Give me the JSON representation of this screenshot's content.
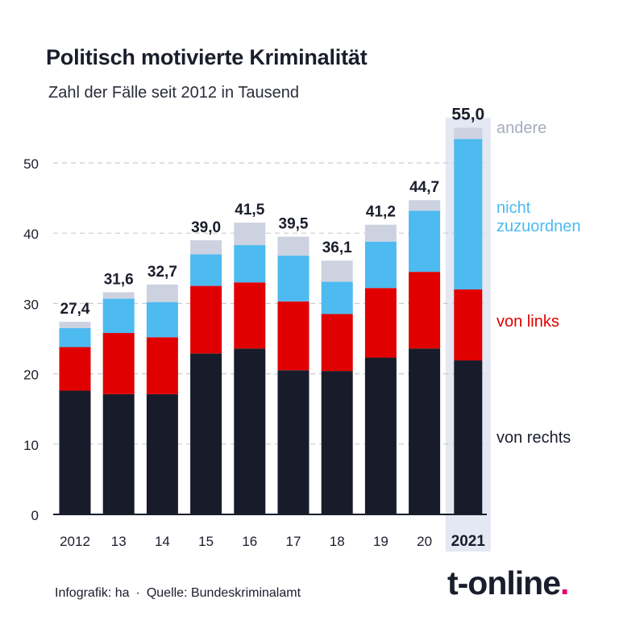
{
  "title": "Politisch motivierte Kriminalität",
  "subtitle": "Zahl der Fälle seit 2012 in Tausend",
  "footer": {
    "credit": "Infografik: ha",
    "separator": "·",
    "source": "Quelle: Bundeskriminalamt"
  },
  "logo": {
    "text": "t-online",
    "dot": "."
  },
  "colors": {
    "von_rechts": "#181b2a",
    "von_links": "#e00000",
    "nicht_zuzuordnen": "#4dbaf0",
    "andere": "#cdd2e1",
    "highlight": "#e3e8f2",
    "grid": "#c9ccd4",
    "axis": "#1a1d2b",
    "brand_accent": "#e20074"
  },
  "chart_data": {
    "type": "bar",
    "stacked": true,
    "categories": [
      "2012",
      "13",
      "14",
      "15",
      "16",
      "17",
      "18",
      "19",
      "20",
      "2021"
    ],
    "highlighted_category": "2021",
    "totals": [
      "27,4",
      "31,6",
      "32,7",
      "39,0",
      "41,5",
      "39,5",
      "36,1",
      "41,2",
      "44,7",
      "55,0"
    ],
    "series": [
      {
        "name": "von rechts",
        "label_lines": [
          "von rechts"
        ],
        "color": "#181b2a",
        "values": [
          17.6,
          17.1,
          17.1,
          22.9,
          23.6,
          20.5,
          20.4,
          22.3,
          23.6,
          21.9
        ]
      },
      {
        "name": "von links",
        "label_lines": [
          "von links"
        ],
        "color": "#e00000",
        "values": [
          6.2,
          8.7,
          8.1,
          9.6,
          9.4,
          9.8,
          8.1,
          9.9,
          10.9,
          10.1
        ]
      },
      {
        "name": "nicht zuzuordnen",
        "label_lines": [
          "nicht",
          "zuzuordnen"
        ],
        "color": "#4dbaf0",
        "values": [
          2.7,
          4.9,
          5.0,
          4.5,
          5.3,
          6.5,
          4.6,
          6.6,
          8.7,
          21.4
        ]
      },
      {
        "name": "andere",
        "label_lines": [
          "andere"
        ],
        "color": "#cdd2e1",
        "values": [
          0.9,
          0.9,
          2.5,
          2.0,
          3.2,
          2.7,
          3.0,
          2.4,
          1.5,
          1.6
        ]
      }
    ],
    "ylim": [
      0,
      55
    ],
    "yticks": [
      0,
      10,
      20,
      30,
      40,
      50
    ],
    "grid": true,
    "legend": "right, inline labels"
  }
}
